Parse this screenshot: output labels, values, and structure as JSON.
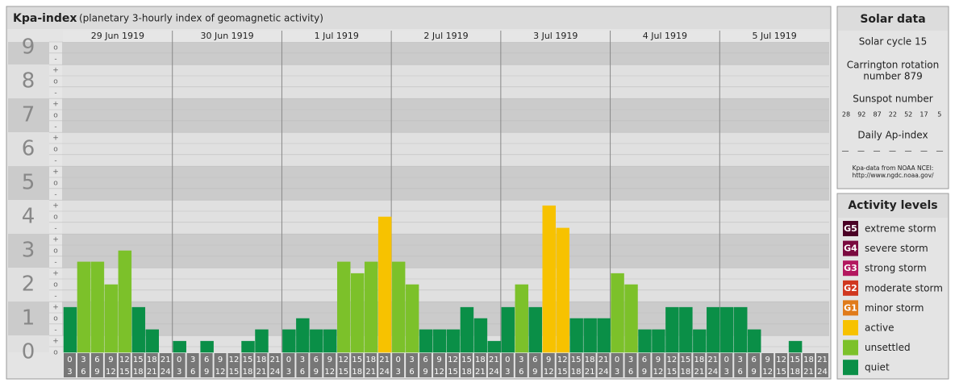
{
  "chart_data": {
    "type": "bar",
    "title": "Kpa-index",
    "subtitle": "(planetary 3-hourly index of geomagnetic activity)",
    "days": [
      "29 Jun 1919",
      "30 Jun 1919",
      "1 Jul 1919",
      "2 Jul 1919",
      "3 Jul 1919",
      "4 Jul 1919",
      "5 Jul 1919"
    ],
    "hours": [
      [
        0,
        3
      ],
      [
        3,
        6
      ],
      [
        6,
        9
      ],
      [
        9,
        12
      ],
      [
        12,
        15
      ],
      [
        15,
        18
      ],
      [
        18,
        21
      ],
      [
        21,
        24
      ]
    ],
    "values": [
      1.33,
      2.67,
      2.67,
      2,
      3,
      1.33,
      0.67,
      0,
      0.33,
      0,
      0.33,
      0,
      0,
      0.33,
      0.67,
      0,
      0.67,
      1,
      0.67,
      0.67,
      2.67,
      2.33,
      2.67,
      4,
      2.67,
      2,
      0.67,
      0.67,
      0.67,
      1.33,
      1,
      0.33,
      1.33,
      2,
      1.33,
      4.33,
      3.67,
      1,
      1,
      1,
      2.33,
      2,
      0.67,
      0.67,
      1.33,
      1.33,
      0.67,
      1.33,
      1.33,
      1.33,
      0.67,
      0,
      0,
      0.33,
      0,
      0
    ],
    "colors": [
      "#0a8f47",
      "#7cc12a",
      "#7cc12a",
      "#7cc12a",
      "#7cc12a",
      "#0a8f47",
      "#0a8f47",
      "#0a8f47",
      "#0a8f47",
      "#0a8f47",
      "#0a8f47",
      "#0a8f47",
      "#0a8f47",
      "#0a8f47",
      "#0a8f47",
      "#0a8f47",
      "#0a8f47",
      "#0a8f47",
      "#0a8f47",
      "#0a8f47",
      "#7cc12a",
      "#7cc12a",
      "#7cc12a",
      "#f7c200",
      "#7cc12a",
      "#7cc12a",
      "#0a8f47",
      "#0a8f47",
      "#0a8f47",
      "#0a8f47",
      "#0a8f47",
      "#0a8f47",
      "#0a8f47",
      "#7cc12a",
      "#0a8f47",
      "#f7c200",
      "#f7c200",
      "#0a8f47",
      "#0a8f47",
      "#0a8f47",
      "#7cc12a",
      "#7cc12a",
      "#0a8f47",
      "#0a8f47",
      "#0a8f47",
      "#0a8f47",
      "#0a8f47",
      "#0a8f47",
      "#0a8f47",
      "#0a8f47",
      "#0a8f47",
      "#0a8f47",
      "#0a8f47",
      "#0a8f47",
      "#0a8f47",
      "#0a8f47"
    ],
    "ylim": [
      0,
      9
    ],
    "yticks": [
      0,
      1,
      2,
      3,
      4,
      5,
      6,
      7,
      8,
      9
    ],
    "yminor_ticks": [
      {
        "value": 0,
        "label": "o"
      },
      {
        "value": 0.33,
        "label": "+"
      },
      {
        "value": 0.67,
        "label": "-"
      },
      {
        "value": 1,
        "label": "o"
      },
      {
        "value": 1.33,
        "label": "+"
      },
      {
        "value": 1.67,
        "label": "-"
      },
      {
        "value": 2,
        "label": "o"
      },
      {
        "value": 2.33,
        "label": "+"
      },
      {
        "value": 2.67,
        "label": "-"
      },
      {
        "value": 3,
        "label": "o"
      },
      {
        "value": 3.33,
        "label": "+"
      },
      {
        "value": 3.67,
        "label": "-"
      },
      {
        "value": 4,
        "label": "o"
      },
      {
        "value": 4.33,
        "label": "+"
      },
      {
        "value": 4.67,
        "label": "-"
      },
      {
        "value": 5,
        "label": "o"
      },
      {
        "value": 5.33,
        "label": "+"
      },
      {
        "value": 5.67,
        "label": "-"
      },
      {
        "value": 6,
        "label": "o"
      },
      {
        "value": 6.33,
        "label": "+"
      },
      {
        "value": 6.67,
        "label": "-"
      },
      {
        "value": 7,
        "label": "o"
      },
      {
        "value": 7.33,
        "label": "+"
      },
      {
        "value": 7.67,
        "label": "-"
      },
      {
        "value": 8,
        "label": "o"
      },
      {
        "value": 8.33,
        "label": "+"
      },
      {
        "value": 8.67,
        "label": "-"
      },
      {
        "value": 9,
        "label": "o"
      }
    ]
  },
  "solar_data": {
    "title": "Solar data",
    "cycle": "Solar cycle 15",
    "rotation": [
      "Carrington rotation",
      "number 879"
    ],
    "sunspot_title": "Sunspot number",
    "sunspot_numbers": [
      28,
      92,
      87,
      22,
      52,
      17,
      5
    ],
    "ap_title": "Daily Ap-index",
    "ap_values": [
      "—",
      "—",
      "—",
      "—",
      "—",
      "—",
      "—"
    ],
    "source": [
      "Kpa-data from NOAA NCEI:",
      "http://www.ngdc.noaa.gov/"
    ]
  },
  "activity_levels": {
    "title": "Activity levels",
    "levels": [
      {
        "badge": "G5",
        "label": "extreme storm",
        "color": "#4a0025"
      },
      {
        "badge": "G4",
        "label": "severe storm",
        "color": "#7a0a3f"
      },
      {
        "badge": "G3",
        "label": "strong storm",
        "color": "#b3175f"
      },
      {
        "badge": "G2",
        "label": "moderate storm",
        "color": "#d0371f"
      },
      {
        "badge": "G1",
        "label": "minor storm",
        "color": "#e07b1a"
      },
      {
        "label": "active",
        "color": "#f7c200"
      },
      {
        "label": "unsettled",
        "color": "#7cc12a"
      },
      {
        "label": "quiet",
        "color": "#0a8f47"
      }
    ]
  }
}
